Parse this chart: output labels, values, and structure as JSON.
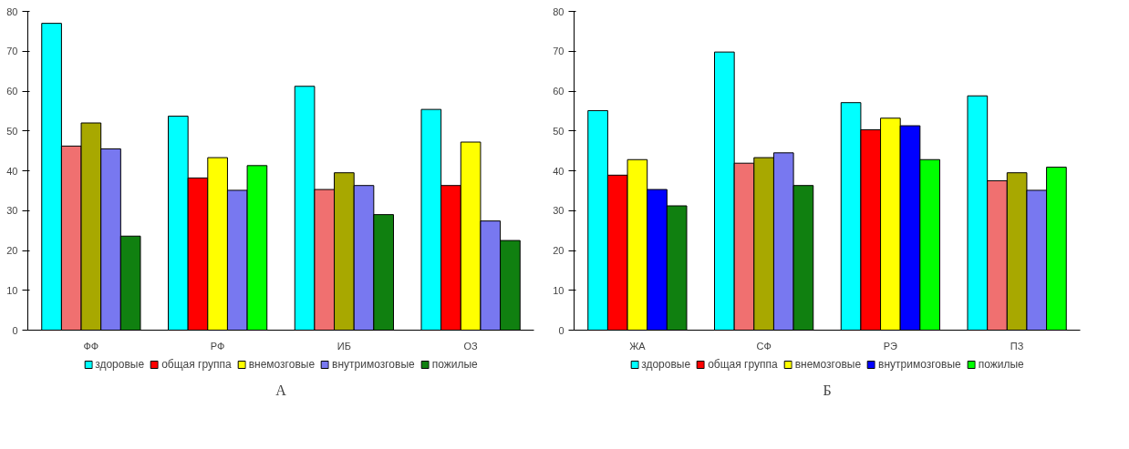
{
  "chart_data": [
    {
      "type": "bar",
      "title": "А",
      "categories": [
        "ФФ",
        "РФ",
        "ИБ",
        "ОЗ"
      ],
      "ylim": [
        0,
        80
      ],
      "yticks": [
        0,
        10,
        20,
        30,
        40,
        50,
        60,
        70,
        80
      ],
      "grid": false,
      "legend": "bottom",
      "series": [
        {
          "name": "здоровые",
          "color": "#00ffff",
          "values": [
            77,
            53.7,
            61.2,
            55.4
          ]
        },
        {
          "name": "общая группа",
          "color": "#ff0000",
          "colors": [
            "#f07070",
            "#ff0000",
            "#f07070",
            "#ff0000"
          ],
          "values": [
            46.2,
            38.2,
            35.3,
            36.3
          ]
        },
        {
          "name": "внемозговые",
          "color": "#ffff00",
          "colors": [
            "#a8a800",
            "#ffff00",
            "#a8a800",
            "#ffff00"
          ],
          "values": [
            52,
            43.3,
            39.5,
            47.2
          ]
        },
        {
          "name": "внутримозговые",
          "color": "#7878f0",
          "colors": [
            "#7878f0",
            "#7878f0",
            "#7878f0",
            "#7878f0"
          ],
          "values": [
            45.5,
            35.1,
            36.3,
            27.4
          ]
        },
        {
          "name": "пожилые",
          "color": "#108010",
          "colors": [
            "#108010",
            "#00ff00",
            "#108010",
            "#108010"
          ],
          "values": [
            23.6,
            41.3,
            29,
            22.5
          ]
        }
      ]
    },
    {
      "type": "bar",
      "title": "Б",
      "categories": [
        "ЖА",
        "СФ",
        "РЭ",
        "ПЗ"
      ],
      "ylim": [
        0,
        80
      ],
      "yticks": [
        0,
        10,
        20,
        30,
        40,
        50,
        60,
        70,
        80
      ],
      "grid": false,
      "legend": "bottom",
      "series": [
        {
          "name": "здоровые",
          "color": "#00ffff",
          "values": [
            55.1,
            69.8,
            57.1,
            58.8
          ]
        },
        {
          "name": "общая группа",
          "color": "#ff0000",
          "colors": [
            "#ff0000",
            "#f07070",
            "#ff0000",
            "#f07070"
          ],
          "values": [
            38.9,
            41.9,
            50.3,
            37.5
          ]
        },
        {
          "name": "внемозговые",
          "color": "#ffff00",
          "colors": [
            "#ffff00",
            "#a8a800",
            "#ffff00",
            "#a8a800"
          ],
          "values": [
            42.8,
            43.3,
            53.2,
            39.5
          ]
        },
        {
          "name": "внутримозговые",
          "color": "#0000ff",
          "colors": [
            "#0000ff",
            "#7878f0",
            "#0000ff",
            "#7878f0"
          ],
          "values": [
            35.3,
            44.5,
            51.3,
            35.1
          ]
        },
        {
          "name": "пожилые",
          "color": "#00ff00",
          "colors": [
            "#108010",
            "#108010",
            "#00ff00",
            "#00ff00"
          ],
          "values": [
            31.2,
            36.3,
            42.8,
            40.9
          ]
        }
      ]
    }
  ]
}
